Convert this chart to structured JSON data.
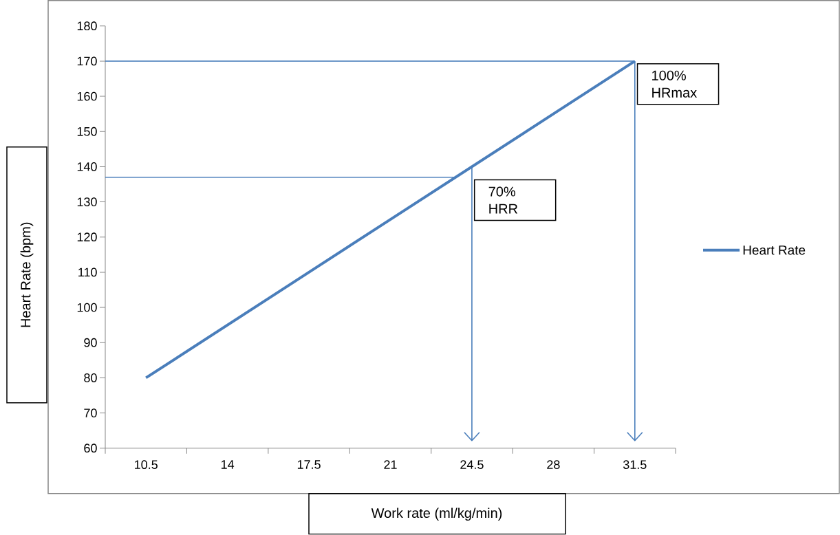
{
  "chart_data": {
    "type": "line",
    "xlabel": "Work rate (ml/kg/min)",
    "ylabel": "Heart Rate (bpm)",
    "categories": [
      "10.5",
      "14",
      "17.5",
      "21",
      "24.5",
      "28",
      "31.5"
    ],
    "series": [
      {
        "name": "Heart Rate",
        "color": "#4a7ebb",
        "values": [
          80,
          95,
          110,
          125,
          140,
          155,
          170
        ]
      }
    ],
    "ylim": [
      60,
      180
    ],
    "yticks": [
      60,
      70,
      80,
      90,
      100,
      110,
      120,
      130,
      140,
      150,
      160,
      170,
      180
    ],
    "ref_lines": [
      {
        "axis": "y",
        "value": 170,
        "color": "#4a7ebb"
      },
      {
        "axis": "y",
        "value": 137,
        "color": "#4a7ebb"
      },
      {
        "axis": "x",
        "value": "24.5",
        "color": "#4a7ebb"
      },
      {
        "axis": "x",
        "value": "31.5",
        "color": "#4a7ebb"
      }
    ],
    "annotations": [
      {
        "text": "100% HRmax",
        "x": "31.5",
        "y": 170
      },
      {
        "text": "70% HRR",
        "x": "24.5",
        "y": 137
      }
    ],
    "legend": "right",
    "grid": false,
    "marker": "none",
    "line_style": "solid"
  }
}
